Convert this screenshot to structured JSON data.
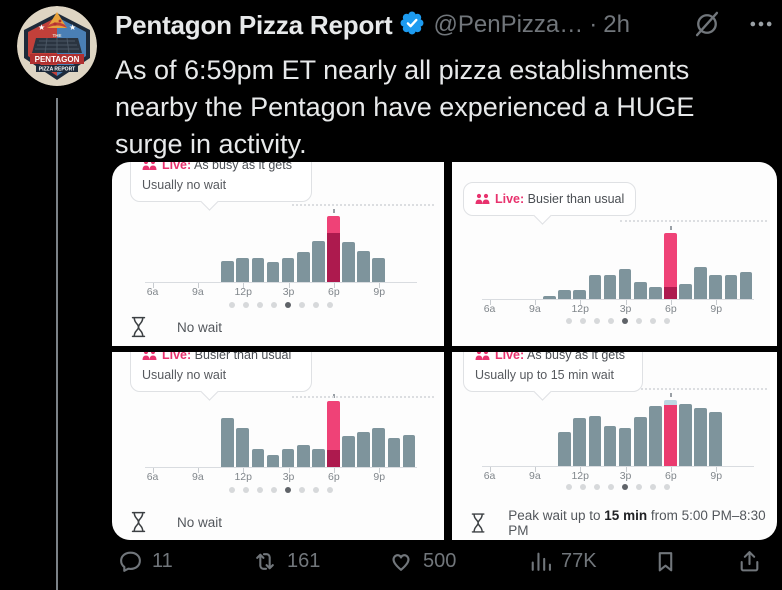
{
  "header": {
    "name": "Pentagon Pizza Report",
    "handle": "@PenPizza…",
    "separator": "·",
    "timestamp": "2h"
  },
  "avatar": {
    "banner_top": "THE",
    "banner_main": "PENTAGON",
    "banner_sub": "PIZZA REPORT"
  },
  "tweet": {
    "lines": [
      "As of 6:59pm ET nearly all pizza establishments",
      "nearby the Pentagon have experienced a HUGE",
      "surge in activity."
    ]
  },
  "actions": {
    "reply_count": "11",
    "repost_count": "161",
    "like_count": "500",
    "views_count": "77K"
  },
  "colors": {
    "background": "#000000",
    "text_primary": "#e7e9ea",
    "text_secondary": "#71767b",
    "badge_blue": "#1d9bf0",
    "bar_gray": "#7e949c",
    "live_pink": "#ef4277",
    "usual_crimson": "#ad1a4e",
    "live_blue_cap": "#bdd8e3",
    "live_label_pink": "#e8336e"
  },
  "chart_data": [
    {
      "type": "bar",
      "panel": "top-left",
      "tooltip": {
        "live_label": "Live:",
        "status": "As busy as it gets",
        "usual_wait": "Usually no wait"
      },
      "tooltip_first_line_clipped": true,
      "x_ticks": [
        "6a",
        "9a",
        "12p",
        "3p",
        "6p",
        "9p"
      ],
      "hours": [
        "11a",
        "12p",
        "1p",
        "2p",
        "3p",
        "4p",
        "5p",
        "6p",
        "7p",
        "8p",
        "9p"
      ],
      "values": [
        32,
        37,
        36,
        31,
        37,
        46,
        62,
        74,
        61,
        47,
        37
      ],
      "live": {
        "hour": "6p",
        "base_pct": 74,
        "peak_pct": 100,
        "base_color": "#ad1a4e",
        "peak_color": "#ef4277"
      },
      "ylim": [
        0,
        100
      ],
      "pagination": {
        "count": 8,
        "active_index": 4
      },
      "footer": {
        "prefix": "No wait",
        "bold": "",
        "suffix": ""
      }
    },
    {
      "type": "bar",
      "panel": "top-right",
      "tooltip": {
        "live_label": "Live:",
        "status": "Busier than usual"
      },
      "tooltip_first_line_clipped": false,
      "x_ticks": [
        "6a",
        "9a",
        "12p",
        "3p",
        "6p",
        "9p"
      ],
      "hours": [
        "10a",
        "11a",
        "12p",
        "1p",
        "2p",
        "3p",
        "4p",
        "5p",
        "6p",
        "7p",
        "8p",
        "9p",
        "10p",
        "11p"
      ],
      "values": [
        4,
        13,
        13,
        36,
        36,
        46,
        26,
        18,
        18,
        23,
        49,
        36,
        36,
        41
      ],
      "live": {
        "hour": "6p",
        "base_pct": 18,
        "peak_pct": 100,
        "base_color": "#ad1a4e",
        "peak_color": "#ef4277"
      },
      "ylim": [
        0,
        100
      ],
      "pagination": {
        "count": 8,
        "active_index": 4
      },
      "footer": null
    },
    {
      "type": "bar",
      "panel": "bottom-left",
      "tooltip": {
        "live_label": "Live:",
        "status": "Busier than usual",
        "usual_wait": "Usually no wait"
      },
      "tooltip_first_line_clipped": true,
      "x_ticks": [
        "6a",
        "9a",
        "12p",
        "3p",
        "6p",
        "9p"
      ],
      "hours": [
        "11a",
        "12p",
        "1p",
        "2p",
        "3p",
        "4p",
        "5p",
        "6p",
        "7p",
        "8p",
        "9p",
        "10p",
        "11p"
      ],
      "values": [
        75,
        59,
        28,
        18,
        28,
        33,
        28,
        26,
        47,
        53,
        59,
        44,
        49
      ],
      "live": {
        "hour": "6p",
        "base_pct": 26,
        "peak_pct": 100,
        "base_color": "#ad1a4e",
        "peak_color": "#ef4277"
      },
      "ylim": [
        0,
        100
      ],
      "pagination": {
        "count": 8,
        "active_index": 4
      },
      "footer": {
        "prefix": "No wait",
        "bold": "",
        "suffix": ""
      }
    },
    {
      "type": "bar",
      "panel": "bottom-right",
      "tooltip": {
        "live_label": "Live:",
        "status": "As busy as it gets",
        "usual_wait": "Usually up to 15 min wait"
      },
      "tooltip_first_line_clipped": true,
      "x_ticks": [
        "6a",
        "9a",
        "12p",
        "3p",
        "6p",
        "9p"
      ],
      "hours": [
        "11a",
        "12p",
        "1p",
        "2p",
        "3p",
        "4p",
        "5p",
        "6p",
        "7p",
        "8p",
        "9p"
      ],
      "values": [
        51,
        73,
        76,
        61,
        58,
        74,
        91,
        92,
        94,
        88,
        82
      ],
      "live": {
        "hour": "6p",
        "base_pct": 92,
        "peak_pct": 100,
        "base_color": "#ea3a6e",
        "peak_color": "#bdd8e3"
      },
      "ylim": [
        0,
        100
      ],
      "pagination": {
        "count": 8,
        "active_index": 4
      },
      "footer": {
        "prefix": "Peak wait up to ",
        "bold": "15 min",
        "suffix": " from 5:00 PM–8:30 PM"
      }
    }
  ]
}
